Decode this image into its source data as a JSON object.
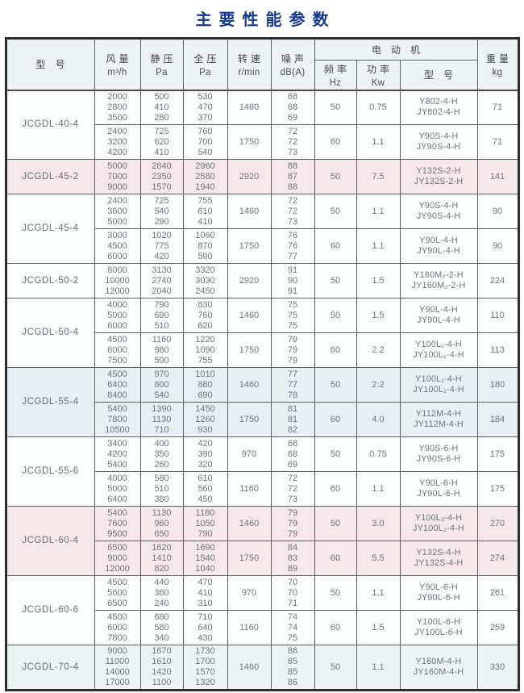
{
  "page_title": "主要性能参数",
  "colors": {
    "title_blue": "#17398f",
    "header_bg": "#edf2f5",
    "row_white": "#fcfdfd",
    "row_pink": "#f6e7eb",
    "row_blue": "#e8eef1",
    "row_teal": "#edf2f2",
    "border_dark": "#2c2f30",
    "subrow_line": "#95b5b9"
  },
  "table": {
    "header": {
      "model": "型号",
      "airflow_name": "风量",
      "airflow_unit": "m³/h",
      "static_name": "静压",
      "static_unit": "Pa",
      "total_name": "全压",
      "total_unit": "Pa",
      "speed_name": "转速",
      "speed_unit": "r/min",
      "noise_name": "噪声",
      "noise_unit": "dB(A)",
      "motor_group": "电动机",
      "freq_name": "频率",
      "freq_unit": "Hz",
      "power_name": "功率",
      "power_unit": "Kw",
      "motor_model": "型号",
      "weight_name": "重量",
      "weight_unit": "kg"
    },
    "groups": [
      {
        "model": "JCGDL-40-4",
        "bg": "white",
        "rows": [
          {
            "airflow": "2000\n2800\n3500",
            "static_pa": "500\n410\n280",
            "total_pa": "530\n470\n370",
            "speed": "1460",
            "noise": "68\n68\n69",
            "freq": "50",
            "power": "0.75",
            "motor": "Y802-4-H\nJY802-4-H",
            "weight": "71"
          },
          {
            "airflow": "2400\n3200\n4200",
            "static_pa": "725\n620\n410",
            "total_pa": "760\n700\n540",
            "speed": "1750",
            "noise": "72\n72\n73",
            "freq": "60",
            "power": "1.1",
            "motor": "Y90S-4-H\nJY90S-4-H",
            "weight": "71"
          }
        ]
      },
      {
        "model": "JCGDL-45-2",
        "bg": "pink",
        "rows": [
          {
            "airflow": "5000\n7000\n9000",
            "static_pa": "2840\n2350\n1570",
            "total_pa": "2960\n2580\n1940",
            "speed": "2920",
            "noise": "88\n87\n88",
            "freq": "50",
            "power": "7.5",
            "motor": "Y132S-2-H\nJY132S-2-H",
            "weight": "141"
          }
        ]
      },
      {
        "model": "JCGDL-45-4",
        "bg": "white",
        "rows": [
          {
            "airflow": "2400\n3600\n5000",
            "static_pa": "725\n540\n290",
            "total_pa": "755\n610\n410",
            "speed": "1460",
            "noise": "72\n72\n73",
            "freq": "50",
            "power": "1.1",
            "motor": "Y90S-4-H\nJY90S-4-H",
            "weight": "90"
          },
          {
            "airflow": "3000\n4500\n6000",
            "static_pa": "1020\n775\n420",
            "total_pa": "1060\n870\n590",
            "speed": "1750",
            "noise": "76\n76\n77",
            "freq": "60",
            "power": "1.1",
            "motor": "Y90L-4-H\nJY90L-4-H",
            "weight": "90"
          }
        ]
      },
      {
        "model": "JCGDL-50-2",
        "bg": "white",
        "rows": [
          {
            "airflow": "8000\n10000\n12000",
            "static_pa": "3130\n2740\n2040",
            "total_pa": "3320\n3030\n2450",
            "speed": "2920",
            "noise": "91\n90\n91",
            "freq": "50",
            "power": "1.5",
            "motor": "Y160M₂-2-H\nJY160M₂-2-H",
            "weight": "224"
          }
        ]
      },
      {
        "model": "JCGDL-50-4",
        "bg": "white",
        "rows": [
          {
            "airflow": "4000\n5000\n6000",
            "static_pa": "790\n690\n510",
            "total_pa": "830\n760\n620",
            "speed": "1460",
            "noise": "75\n75\n75",
            "freq": "50",
            "power": "1.5",
            "motor": "Y90L-4-H\nJY90L-4-H",
            "weight": "110"
          },
          {
            "airflow": "4500\n6000\n7500",
            "static_pa": "1160\n980\n590",
            "total_pa": "1220\n1090\n755",
            "speed": "1750",
            "noise": "79\n79\n79",
            "freq": "60",
            "power": "2.2",
            "motor": "Y100L₁-4-H\nJY100L₁-4-H",
            "weight": "113"
          }
        ]
      },
      {
        "model": "JCGDL-55-4",
        "bg": "blue",
        "rows": [
          {
            "airflow": "4500\n6400\n8400",
            "static_pa": "970\n800\n540",
            "total_pa": "1010\n880\n690",
            "speed": "1460",
            "noise": "77\n77\n78",
            "freq": "50",
            "power": "2.2",
            "motor": "Y100L₁-4-H\nJY100L₁-4-H",
            "weight": "180"
          },
          {
            "airflow": "5400\n7800\n10500",
            "static_pa": "1390\n1130\n710",
            "total_pa": "1450\n1260\n930",
            "speed": "1750",
            "noise": "81\n81\n82",
            "freq": "60",
            "power": "4.0",
            "motor": "Y112M-4-H\nJY112M-4-H",
            "weight": "184"
          }
        ]
      },
      {
        "model": "JCGDL-55-6",
        "bg": "white",
        "rows": [
          {
            "airflow": "3400\n4200\n5400",
            "static_pa": "400\n350\n260",
            "total_pa": "420\n390\n320",
            "speed": "970",
            "noise": "68\n68\n69",
            "freq": "50",
            "power": "0.75",
            "motor": "Y90S-6-H\nJY90S-6-H",
            "weight": "175"
          },
          {
            "airflow": "4000\n5000\n6400",
            "static_pa": "580\n510\n380",
            "total_pa": "610\n560\n450",
            "speed": "1160",
            "noise": "72\n72\n73",
            "freq": "60",
            "power": "1.1",
            "motor": "Y90L-6-H\nJY90L-6-H",
            "weight": "175"
          }
        ]
      },
      {
        "model": "JCGDL-60-4",
        "bg": "pink",
        "rows": [
          {
            "airflow": "5400\n7600\n9500",
            "static_pa": "1130\n960\n650",
            "total_pa": "1180\n1050\n790",
            "speed": "1460",
            "noise": "79\n79\n79",
            "freq": "50",
            "power": "3.0",
            "motor": "Y100L₂-4-H\nJY100L₂-4-H",
            "weight": "270"
          },
          {
            "airflow": "6500\n9000\n12000",
            "static_pa": "1620\n1410\n820",
            "total_pa": "1690\n1540\n1040",
            "speed": "1750",
            "noise": "84\n83\n89",
            "freq": "60",
            "power": "5.5",
            "motor": "Y132S-4-H\nJY132S-4-H",
            "weight": "274"
          }
        ]
      },
      {
        "model": "JCGDL-60-6",
        "bg": "white",
        "rows": [
          {
            "airflow": "4500\n5600\n6500",
            "static_pa": "440\n360\n240",
            "total_pa": "470\n410\n310",
            "speed": "970",
            "noise": "70\n70\n71",
            "freq": "50",
            "power": "1.1",
            "motor": "Y90L-6-H\nJY90L-6-H",
            "weight": "261"
          },
          {
            "airflow": "4500\n6000\n7800",
            "static_pa": "680\n580\n340",
            "total_pa": "710\n640\n430",
            "speed": "1160",
            "noise": "74\n74\n75",
            "freq": "60",
            "power": "1.5",
            "motor": "Y100L-6-H\nJY100L-6-H",
            "weight": "259"
          }
        ]
      },
      {
        "model": "JCGDL-70-4",
        "bg": "teal",
        "lines": 4,
        "rows": [
          {
            "airflow": "9000\n11000\n14000\n17000",
            "static_pa": "1670\n1610\n1420\n1100",
            "total_pa": "1730\n1700\n1570\n1320",
            "speed": "1460",
            "noise": "86\n85\n85\n86",
            "freq": "50",
            "power": "1.1",
            "motor": "Y160M-4-H\nJY160M-4-H",
            "weight": "330"
          }
        ]
      }
    ]
  }
}
